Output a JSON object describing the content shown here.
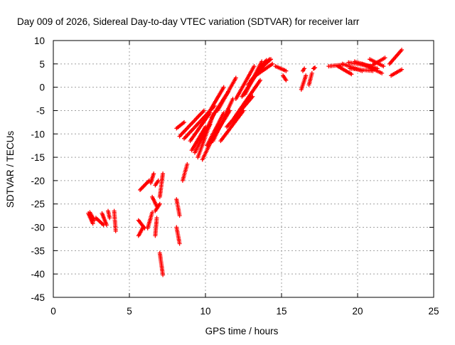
{
  "chart_data": {
    "type": "scatter",
    "title": "Day 009 of 2026, Sidereal Day-to-day VTEC variation (SDTVAR) for receiver larr",
    "xlabel": "GPS time / hours",
    "ylabel": "SDTVAR / TECUs",
    "xlim": [
      0,
      25
    ],
    "ylim": [
      -45,
      10
    ],
    "xticks": [
      0,
      5,
      10,
      15,
      20,
      25
    ],
    "yticks": [
      -45,
      -40,
      -35,
      -30,
      -25,
      -20,
      -15,
      -10,
      -5,
      0,
      5,
      10
    ],
    "grid": true,
    "marker": "plus",
    "series_color": "#ff0000",
    "segments": [
      {
        "x": [
          2.3,
          2.6
        ],
        "y": [
          -27.0,
          -29.2
        ]
      },
      {
        "x": [
          2.4,
          2.7
        ],
        "y": [
          -26.8,
          -28.5
        ]
      },
      {
        "x": [
          2.8,
          3.3
        ],
        "y": [
          -28.0,
          -29.5
        ]
      },
      {
        "x": [
          3.2,
          3.5
        ],
        "y": [
          -27.0,
          -29.5
        ]
      },
      {
        "x": [
          3.6,
          3.7
        ],
        "y": [
          -26.5,
          -28.0
        ]
      },
      {
        "x": [
          4.0,
          4.1
        ],
        "y": [
          -26.5,
          -30.8
        ]
      },
      {
        "x": [
          5.6,
          5.9
        ],
        "y": [
          -31.8,
          -30.0
        ]
      },
      {
        "x": [
          5.6,
          6.0
        ],
        "y": [
          -28.5,
          -30.2
        ]
      },
      {
        "x": [
          5.7,
          6.3
        ],
        "y": [
          -22.0,
          -20.0
        ]
      },
      {
        "x": [
          6.2,
          6.5
        ],
        "y": [
          -30.2,
          -26.8
        ]
      },
      {
        "x": [
          6.4,
          6.6
        ],
        "y": [
          -20.5,
          -18.5
        ]
      },
      {
        "x": [
          6.5,
          6.8
        ],
        "y": [
          -23.5,
          -25.5
        ]
      },
      {
        "x": [
          6.7,
          7.0
        ],
        "y": [
          -26.5,
          -25.0
        ]
      },
      {
        "x": [
          6.7,
          6.8
        ],
        "y": [
          -31.8,
          -28.0
        ]
      },
      {
        "x": [
          6.7,
          6.9
        ],
        "y": [
          -21.0,
          -20.0
        ]
      },
      {
        "x": [
          7.0,
          7.2
        ],
        "y": [
          -35.5,
          -40.2
        ]
      },
      {
        "x": [
          7.0,
          7.2
        ],
        "y": [
          -23.5,
          -18.5
        ]
      },
      {
        "x": [
          8.1,
          8.3
        ],
        "y": [
          -24.0,
          -27.5
        ]
      },
      {
        "x": [
          8.1,
          8.3
        ],
        "y": [
          -30.0,
          -33.5
        ]
      },
      {
        "x": [
          8.5,
          8.8
        ],
        "y": [
          -20.0,
          -16.5
        ]
      },
      {
        "x": [
          8.1,
          8.6
        ],
        "y": [
          -8.8,
          -7.5
        ]
      },
      {
        "x": [
          8.3,
          9.9
        ],
        "y": [
          -10.5,
          -5.0
        ]
      },
      {
        "x": [
          8.6,
          10.6
        ],
        "y": [
          -11.0,
          -4.0
        ]
      },
      {
        "x": [
          9.0,
          10.3
        ],
        "y": [
          -11.5,
          -5.5
        ]
      },
      {
        "x": [
          9.1,
          10.0
        ],
        "y": [
          -13.5,
          -8.5
        ]
      },
      {
        "x": [
          9.3,
          10.6
        ],
        "y": [
          -14.0,
          -5.5
        ]
      },
      {
        "x": [
          9.6,
          10.3
        ],
        "y": [
          -11.5,
          -8.0
        ]
      },
      {
        "x": [
          9.5,
          10.5
        ],
        "y": [
          -15.0,
          -6.0
        ]
      },
      {
        "x": [
          9.8,
          10.9
        ],
        "y": [
          -15.5,
          -8.0
        ]
      },
      {
        "x": [
          10.1,
          11.2
        ],
        "y": [
          -12.5,
          -5.5
        ]
      },
      {
        "x": [
          10.3,
          11.6
        ],
        "y": [
          -12.0,
          -5.0
        ]
      },
      {
        "x": [
          10.5,
          11.8
        ],
        "y": [
          -11.5,
          -2.5
        ]
      },
      {
        "x": [
          10.3,
          11.2
        ],
        "y": [
          -5.0,
          0.0
        ]
      },
      {
        "x": [
          10.4,
          11.5
        ],
        "y": [
          -6.5,
          -1.0
        ]
      },
      {
        "x": [
          10.8,
          12.0
        ],
        "y": [
          -5.0,
          2.0
        ]
      },
      {
        "x": [
          11.0,
          12.5
        ],
        "y": [
          -11.5,
          -5.0
        ]
      },
      {
        "x": [
          11.4,
          13.1
        ],
        "y": [
          -8.5,
          -2.0
        ]
      },
      {
        "x": [
          11.9,
          13.6
        ],
        "y": [
          -6.5,
          1.5
        ]
      },
      {
        "x": [
          12.0,
          13.2
        ],
        "y": [
          -2.5,
          4.5
        ]
      },
      {
        "x": [
          12.4,
          13.5
        ],
        "y": [
          -2.0,
          3.5
        ]
      },
      {
        "x": [
          12.6,
          13.7
        ],
        "y": [
          -1.5,
          5.5
        ]
      },
      {
        "x": [
          12.8,
          14.0
        ],
        "y": [
          0.5,
          5.8
        ]
      },
      {
        "x": [
          13.0,
          14.2
        ],
        "y": [
          1.5,
          6.0
        ]
      },
      {
        "x": [
          13.3,
          14.4
        ],
        "y": [
          2.5,
          5.0
        ]
      },
      {
        "x": [
          13.6,
          14.3
        ],
        "y": [
          4.0,
          6.0
        ]
      },
      {
        "x": [
          14.6,
          15.3
        ],
        "y": [
          4.5,
          3.5
        ]
      },
      {
        "x": [
          15.1,
          15.3
        ],
        "y": [
          2.5,
          1.5
        ]
      },
      {
        "x": [
          16.3,
          16.6
        ],
        "y": [
          -0.5,
          2.5
        ]
      },
      {
        "x": [
          16.4,
          16.5
        ],
        "y": [
          3.5,
          4.0
        ]
      },
      {
        "x": [
          16.8,
          17.0
        ],
        "y": [
          0.5,
          3.0
        ]
      },
      {
        "x": [
          17.1,
          17.2
        ],
        "y": [
          4.0,
          4.2
        ]
      },
      {
        "x": [
          18.1,
          19.0
        ],
        "y": [
          4.5,
          4.8
        ]
      },
      {
        "x": [
          18.7,
          19.6
        ],
        "y": [
          4.5,
          2.8
        ]
      },
      {
        "x": [
          19.0,
          20.3
        ],
        "y": [
          5.0,
          3.5
        ]
      },
      {
        "x": [
          19.4,
          20.9
        ],
        "y": [
          5.3,
          4.5
        ]
      },
      {
        "x": [
          19.5,
          21.0
        ],
        "y": [
          4.0,
          3.5
        ]
      },
      {
        "x": [
          19.8,
          21.3
        ],
        "y": [
          5.5,
          4.0
        ]
      },
      {
        "x": [
          20.3,
          21.6
        ],
        "y": [
          5.0,
          3.0
        ]
      },
      {
        "x": [
          20.8,
          21.7
        ],
        "y": [
          6.0,
          4.5
        ]
      },
      {
        "x": [
          21.0,
          21.8
        ],
        "y": [
          4.8,
          6.3
        ]
      },
      {
        "x": [
          22.1,
          22.9
        ],
        "y": [
          5.0,
          8.0
        ]
      },
      {
        "x": [
          22.2,
          22.9
        ],
        "y": [
          2.5,
          3.8
        ]
      }
    ]
  }
}
